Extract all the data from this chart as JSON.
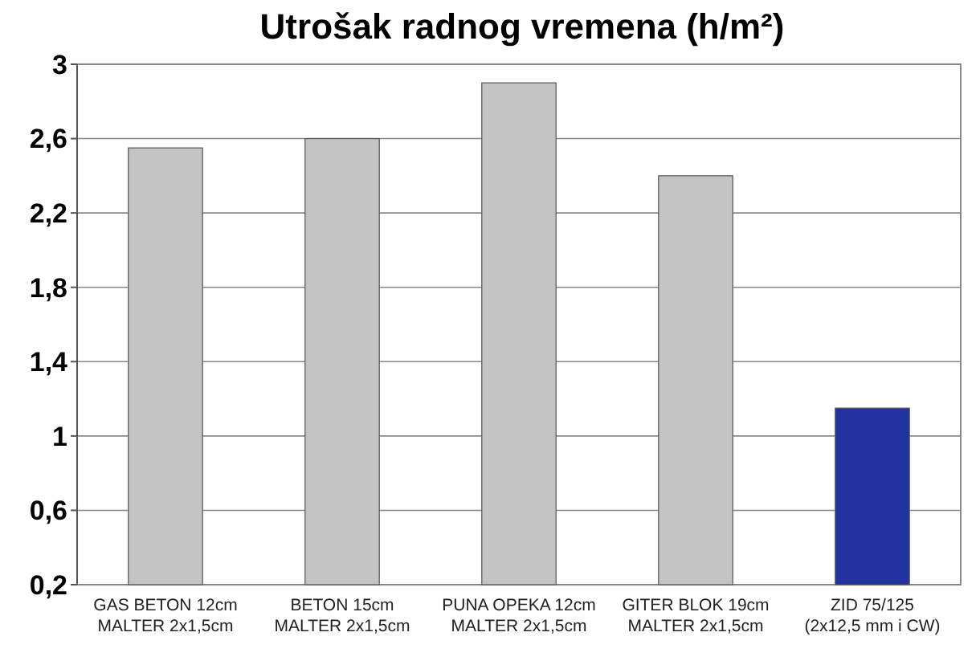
{
  "chart_data": {
    "type": "bar",
    "title": "Utrošak radnog vremena (h/m²)",
    "categories": [
      "GAS BETON 12cm\nMALTER 2x1,5cm",
      "BETON 15cm\nMALTER 2x1,5cm",
      "PUNA OPEKA 12cm\nMALTER 2x1,5cm",
      "GITER BLOK 19cm\nMALTER 2x1,5cm",
      "ZID 75/125\n(2x12,5 mm i CW)"
    ],
    "values": [
      2.55,
      2.6,
      2.9,
      2.4,
      1.15
    ],
    "colors": [
      "#c4c4c4",
      "#c4c4c4",
      "#c4c4c4",
      "#c4c4c4",
      "#2233a0"
    ],
    "ylim": [
      0.2,
      3
    ],
    "yticks": [
      {
        "value": 0.2,
        "label": "0,2"
      },
      {
        "value": 0.6,
        "label": "0,6"
      },
      1,
      {
        "value": 1.4,
        "label": "1,4"
      },
      {
        "value": 1.8,
        "label": "1,8"
      },
      {
        "value": 2.2,
        "label": "2,2"
      },
      {
        "value": 2.6,
        "label": "2,6"
      },
      3
    ],
    "grid": "y"
  }
}
